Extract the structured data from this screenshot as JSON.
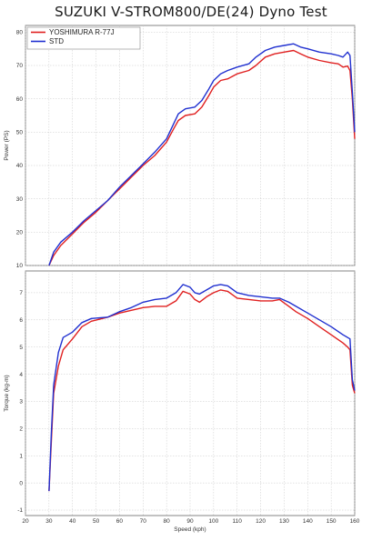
{
  "title": "SUZUKI V-STROM800/DE(24) Dyno Test",
  "chart_data": [
    {
      "type": "line",
      "name": "power",
      "ylabel": "Power (PS)",
      "xlim": [
        20,
        160
      ],
      "ylim": [
        10,
        82
      ],
      "yticks": [
        10,
        20,
        30,
        40,
        50,
        60,
        70,
        80
      ],
      "grid": true,
      "legend": "top-left",
      "series": [
        {
          "name": "YOSHIMURA R-77J",
          "color": "#e02020",
          "points": [
            [
              30,
              10
            ],
            [
              32,
              13
            ],
            [
              35,
              16
            ],
            [
              40,
              19.5
            ],
            [
              45,
              23
            ],
            [
              50,
              26
            ],
            [
              55,
              29.5
            ],
            [
              60,
              33
            ],
            [
              65,
              36.5
            ],
            [
              70,
              40
            ],
            [
              75,
              43
            ],
            [
              80,
              47
            ],
            [
              83,
              51
            ],
            [
              85,
              53.5
            ],
            [
              88,
              55
            ],
            [
              92,
              55.5
            ],
            [
              95,
              57.5
            ],
            [
              98,
              61
            ],
            [
              100,
              63.5
            ],
            [
              103,
              65.5
            ],
            [
              106,
              66
            ],
            [
              110,
              67.5
            ],
            [
              115,
              68.5
            ],
            [
              118,
              70
            ],
            [
              122,
              72.5
            ],
            [
              126,
              73.5
            ],
            [
              130,
              74
            ],
            [
              134,
              74.5
            ],
            [
              137,
              73.5
            ],
            [
              140,
              72.5
            ],
            [
              145,
              71.5
            ],
            [
              150,
              70.8
            ],
            [
              153,
              70.5
            ],
            [
              155,
              69.5
            ],
            [
              157,
              69.8
            ],
            [
              158,
              68.5
            ],
            [
              159,
              60
            ],
            [
              160,
              48
            ]
          ]
        },
        {
          "name": "STD",
          "color": "#2030d0",
          "points": [
            [
              30,
              10
            ],
            [
              32,
              14
            ],
            [
              35,
              17
            ],
            [
              40,
              20
            ],
            [
              45,
              23.5
            ],
            [
              50,
              26.5
            ],
            [
              55,
              29.5
            ],
            [
              60,
              33.5
            ],
            [
              65,
              37
            ],
            [
              70,
              40.5
            ],
            [
              75,
              44
            ],
            [
              80,
              48
            ],
            [
              83,
              52.5
            ],
            [
              85,
              55.5
            ],
            [
              88,
              57
            ],
            [
              92,
              57.5
            ],
            [
              95,
              59.5
            ],
            [
              98,
              63
            ],
            [
              100,
              65.5
            ],
            [
              103,
              67.5
            ],
            [
              106,
              68.5
            ],
            [
              110,
              69.5
            ],
            [
              115,
              70.5
            ],
            [
              118,
              72.5
            ],
            [
              122,
              74.5
            ],
            [
              126,
              75.5
            ],
            [
              130,
              76
            ],
            [
              134,
              76.5
            ],
            [
              137,
              75.5
            ],
            [
              140,
              75
            ],
            [
              145,
              74
            ],
            [
              150,
              73.5
            ],
            [
              153,
              73
            ],
            [
              155,
              72.5
            ],
            [
              157,
              74
            ],
            [
              158,
              73
            ],
            [
              159,
              62
            ],
            [
              160,
              50
            ]
          ]
        }
      ]
    },
    {
      "type": "line",
      "name": "torque",
      "xlabel": "Speed (kph)",
      "ylabel": "Torque (kg-m)",
      "xlim": [
        20,
        160
      ],
      "xticks": [
        20,
        30,
        40,
        50,
        60,
        70,
        80,
        90,
        100,
        110,
        120,
        130,
        140,
        150,
        160
      ],
      "ylim": [
        -1.2,
        7.8
      ],
      "yticks": [
        -1,
        0,
        1,
        2,
        3,
        4,
        5,
        6,
        7
      ],
      "grid": true,
      "series": [
        {
          "name": "YOSHIMURA R-77J",
          "color": "#e02020",
          "points": [
            [
              30,
              -0.3
            ],
            [
              31,
              1.5
            ],
            [
              32,
              3.3
            ],
            [
              34,
              4.3
            ],
            [
              36,
              4.9
            ],
            [
              40,
              5.3
            ],
            [
              44,
              5.75
            ],
            [
              48,
              5.95
            ],
            [
              55,
              6.1
            ],
            [
              60,
              6.25
            ],
            [
              65,
              6.35
            ],
            [
              70,
              6.45
            ],
            [
              75,
              6.5
            ],
            [
              80,
              6.5
            ],
            [
              84,
              6.7
            ],
            [
              87,
              7.05
            ],
            [
              90,
              6.95
            ],
            [
              92,
              6.75
            ],
            [
              94,
              6.65
            ],
            [
              97,
              6.85
            ],
            [
              100,
              7.0
            ],
            [
              103,
              7.1
            ],
            [
              106,
              7.05
            ],
            [
              110,
              6.8
            ],
            [
              115,
              6.75
            ],
            [
              120,
              6.7
            ],
            [
              125,
              6.7
            ],
            [
              128,
              6.75
            ],
            [
              132,
              6.5
            ],
            [
              135,
              6.3
            ],
            [
              140,
              6.05
            ],
            [
              145,
              5.75
            ],
            [
              150,
              5.45
            ],
            [
              155,
              5.15
            ],
            [
              157,
              5.0
            ],
            [
              158,
              4.9
            ],
            [
              159,
              3.6
            ],
            [
              160,
              3.3
            ]
          ]
        },
        {
          "name": "STD",
          "color": "#2030d0",
          "points": [
            [
              30,
              -0.3
            ],
            [
              31,
              1.8
            ],
            [
              32,
              3.6
            ],
            [
              34,
              4.8
            ],
            [
              36,
              5.35
            ],
            [
              40,
              5.55
            ],
            [
              44,
              5.9
            ],
            [
              48,
              6.05
            ],
            [
              55,
              6.1
            ],
            [
              60,
              6.3
            ],
            [
              65,
              6.45
            ],
            [
              70,
              6.65
            ],
            [
              75,
              6.75
            ],
            [
              80,
              6.8
            ],
            [
              84,
              7.0
            ],
            [
              87,
              7.3
            ],
            [
              90,
              7.2
            ],
            [
              92,
              7.0
            ],
            [
              94,
              6.95
            ],
            [
              97,
              7.1
            ],
            [
              100,
              7.25
            ],
            [
              103,
              7.3
            ],
            [
              106,
              7.25
            ],
            [
              110,
              7.0
            ],
            [
              115,
              6.9
            ],
            [
              120,
              6.85
            ],
            [
              125,
              6.8
            ],
            [
              128,
              6.8
            ],
            [
              132,
              6.65
            ],
            [
              135,
              6.5
            ],
            [
              140,
              6.25
            ],
            [
              145,
              6.0
            ],
            [
              150,
              5.75
            ],
            [
              155,
              5.45
            ],
            [
              157,
              5.35
            ],
            [
              158,
              5.3
            ],
            [
              159,
              3.8
            ],
            [
              160,
              3.4
            ]
          ]
        }
      ]
    }
  ]
}
